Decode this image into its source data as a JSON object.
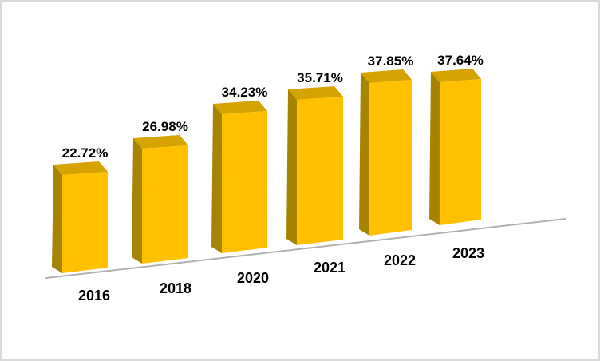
{
  "chart_data": {
    "type": "bar",
    "variant": "3d-column",
    "title": "",
    "xlabel": "",
    "ylabel": "",
    "unit": "%",
    "grid": false,
    "legend_position": "none",
    "categories": [
      "2016",
      "2018",
      "2020",
      "2021",
      "2022",
      "2023"
    ],
    "values": [
      22.72,
      26.98,
      34.23,
      35.71,
      37.85,
      37.64
    ],
    "labels": [
      "22.72%",
      "26.98%",
      "34.23%",
      "35.71%",
      "37.85%",
      "37.64%"
    ],
    "ylim": [
      0,
      40
    ],
    "colors": {
      "bar_front": "#FFC000",
      "bar_side": "#A68300",
      "bar_top": "#D5A200",
      "label_text": "#000000",
      "axis_line": "#B0B0B0",
      "frame_border": "#D9D9D9",
      "background": "#FFFFFF"
    }
  }
}
